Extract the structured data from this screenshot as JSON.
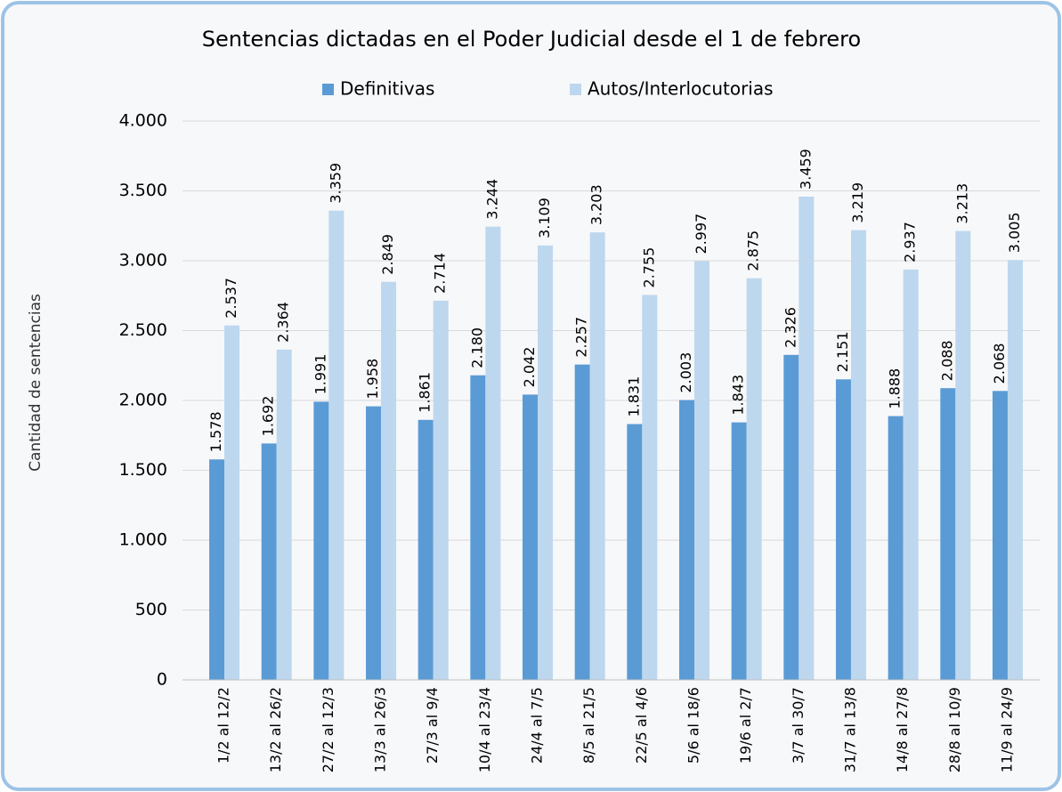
{
  "chart_data": {
    "type": "bar",
    "title": "Sentencias dictadas en el Poder Judicial desde el 1 de febrero",
    "y_label": "Cantidad de sentencias",
    "categories": [
      "1/2 al 12/2",
      "13/2 al 26/2",
      "27/2 al 12/3",
      "13/3 al 26/3",
      "27/3 al 9/4",
      "10/4 al 23/4",
      "24/4 al 7/5",
      "8/5 al 21/5",
      "22/5 al 4/6",
      "5/6 al 18/6",
      "19/6 al 2/7",
      "3/7 al 30/7",
      "31/7 al 13/8",
      "14/8 al 27/8",
      "28/8 al 10/9",
      "11/9 al 24/9"
    ],
    "series": [
      {
        "name": "Definitivas",
        "color": "#5b9bd5",
        "values": [
          1578,
          1692,
          1991,
          1958,
          1861,
          2180,
          2042,
          2257,
          1831,
          2003,
          1843,
          2326,
          2151,
          1888,
          2088,
          2068
        ],
        "value_labels": [
          "1.578",
          "1.692",
          "1.991",
          "1.958",
          "1.861",
          "2.180",
          "2.042",
          "2.257",
          "1.831",
          "2.003",
          "1.843",
          "2.326",
          "2.151",
          "1.888",
          "2.088",
          "2.068"
        ]
      },
      {
        "name": "Autos/Interlocutorias",
        "color": "#bdd7ee",
        "values": [
          2537,
          2364,
          3359,
          2849,
          2714,
          3244,
          3109,
          3203,
          2755,
          2997,
          2875,
          3459,
          3219,
          2937,
          3213,
          3005
        ],
        "value_labels": [
          "2.537",
          "2.364",
          "3.359",
          "2.849",
          "2.714",
          "3.244",
          "3.109",
          "3.203",
          "2.755",
          "2.997",
          "2.875",
          "3.459",
          "3.219",
          "2.937",
          "3.213",
          "3.005"
        ]
      }
    ],
    "ylim": [
      0,
      4000
    ],
    "yticks": [
      0,
      500,
      {
        "value": 1000,
        "label": "1.000"
      },
      {
        "value": 1500,
        "label": "1.500"
      },
      {
        "value": 2000,
        "label": "2.000"
      },
      {
        "value": 2500,
        "label": "2.500"
      },
      {
        "value": 3000,
        "label": "3.000"
      },
      {
        "value": 3500,
        "label": "3.500"
      },
      {
        "value": 4000,
        "label": "4.000"
      }
    ],
    "grid": true
  }
}
